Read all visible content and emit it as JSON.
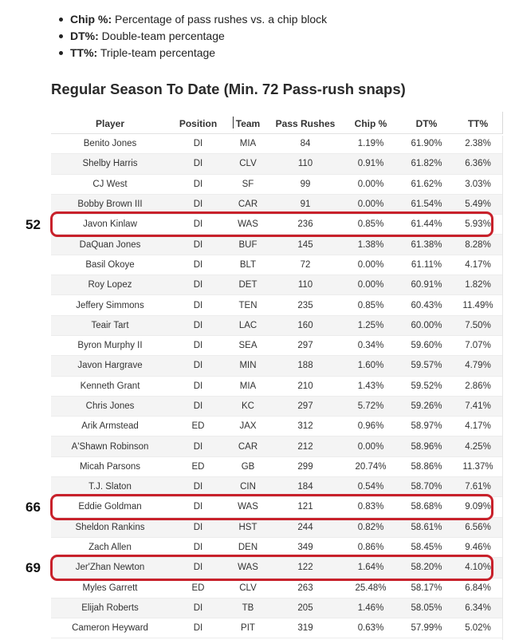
{
  "definitions": [
    {
      "term": "Chip %:",
      "desc": "Percentage of pass rushes vs. a chip block"
    },
    {
      "term": "DT%:",
      "desc": "Double-team percentage"
    },
    {
      "term": "TT%:",
      "desc": "Triple-team percentage"
    }
  ],
  "section_title": "Regular Season To Date (Min. 72 Pass-rush snaps)",
  "table": {
    "headers": [
      "Player",
      "Position",
      "Team",
      "Pass Rushes",
      "Chip %",
      "DT%",
      "TT%"
    ],
    "rows": [
      [
        "Benito Jones",
        "DI",
        "MIA",
        "84",
        "1.19%",
        "61.90%",
        "2.38%"
      ],
      [
        "Shelby Harris",
        "DI",
        "CLV",
        "110",
        "0.91%",
        "61.82%",
        "6.36%"
      ],
      [
        "CJ West",
        "DI",
        "SF",
        "99",
        "0.00%",
        "61.62%",
        "3.03%"
      ],
      [
        "Bobby Brown III",
        "DI",
        "CAR",
        "91",
        "0.00%",
        "61.54%",
        "5.49%"
      ],
      [
        "Javon Kinlaw",
        "DI",
        "WAS",
        "236",
        "0.85%",
        "61.44%",
        "5.93%"
      ],
      [
        "DaQuan Jones",
        "DI",
        "BUF",
        "145",
        "1.38%",
        "61.38%",
        "8.28%"
      ],
      [
        "Basil Okoye",
        "DI",
        "BLT",
        "72",
        "0.00%",
        "61.11%",
        "4.17%"
      ],
      [
        "Roy Lopez",
        "DI",
        "DET",
        "110",
        "0.00%",
        "60.91%",
        "1.82%"
      ],
      [
        "Jeffery Simmons",
        "DI",
        "TEN",
        "235",
        "0.85%",
        "60.43%",
        "11.49%"
      ],
      [
        "Teair Tart",
        "DI",
        "LAC",
        "160",
        "1.25%",
        "60.00%",
        "7.50%"
      ],
      [
        "Byron Murphy II",
        "DI",
        "SEA",
        "297",
        "0.34%",
        "59.60%",
        "7.07%"
      ],
      [
        "Javon Hargrave",
        "DI",
        "MIN",
        "188",
        "1.60%",
        "59.57%",
        "4.79%"
      ],
      [
        "Kenneth Grant",
        "DI",
        "MIA",
        "210",
        "1.43%",
        "59.52%",
        "2.86%"
      ],
      [
        "Chris Jones",
        "DI",
        "KC",
        "297",
        "5.72%",
        "59.26%",
        "7.41%"
      ],
      [
        "Arik Armstead",
        "ED",
        "JAX",
        "312",
        "0.96%",
        "58.97%",
        "4.17%"
      ],
      [
        "A'Shawn Robinson",
        "DI",
        "CAR",
        "212",
        "0.00%",
        "58.96%",
        "4.25%"
      ],
      [
        "Micah Parsons",
        "ED",
        "GB",
        "299",
        "20.74%",
        "58.86%",
        "11.37%"
      ],
      [
        "T.J. Slaton",
        "DI",
        "CIN",
        "184",
        "0.54%",
        "58.70%",
        "7.61%"
      ],
      [
        "Eddie Goldman",
        "DI",
        "WAS",
        "121",
        "0.83%",
        "58.68%",
        "9.09%"
      ],
      [
        "Sheldon Rankins",
        "DI",
        "HST",
        "244",
        "0.82%",
        "58.61%",
        "6.56%"
      ],
      [
        "Zach Allen",
        "DI",
        "DEN",
        "349",
        "0.86%",
        "58.45%",
        "9.46%"
      ],
      [
        "Jer'Zhan Newton",
        "DI",
        "WAS",
        "122",
        "1.64%",
        "58.20%",
        "4.10%"
      ],
      [
        "Myles Garrett",
        "ED",
        "CLV",
        "263",
        "25.48%",
        "58.17%",
        "6.84%"
      ],
      [
        "Elijah Roberts",
        "DI",
        "TB",
        "205",
        "1.46%",
        "58.05%",
        "6.34%"
      ],
      [
        "Cameron Heyward",
        "DI",
        "PIT",
        "319",
        "0.63%",
        "57.99%",
        "5.02%"
      ]
    ]
  },
  "annotations": [
    {
      "label": "52",
      "row_index": 4,
      "color": "#c8212b"
    },
    {
      "label": "66",
      "row_index": 18,
      "color": "#c8212b"
    },
    {
      "label": "69",
      "row_index": 21,
      "color": "#c8212b"
    }
  ]
}
